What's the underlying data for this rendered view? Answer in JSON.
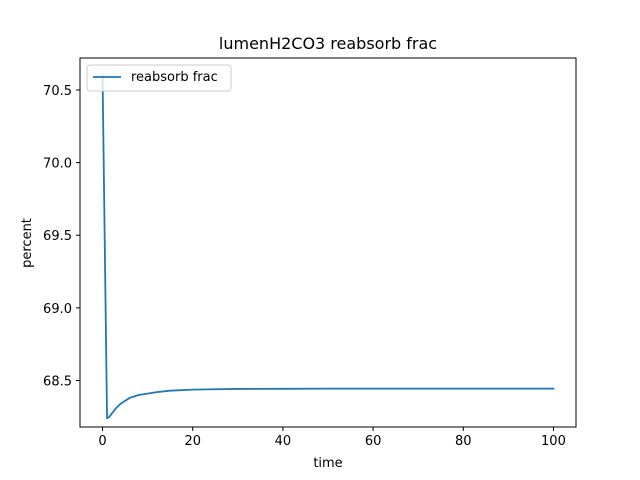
{
  "chart_data": {
    "type": "line",
    "title": "lumenH2CO3 reabsorb frac",
    "xlabel": "time",
    "ylabel": "percent",
    "xlim": [
      -5,
      105
    ],
    "ylim": [
      68.18,
      70.72
    ],
    "xticks": [
      0,
      20,
      40,
      60,
      80,
      100
    ],
    "yticks": [
      68.5,
      69.0,
      69.5,
      70.0,
      70.5
    ],
    "xtick_labels": [
      "0",
      "20",
      "40",
      "60",
      "80",
      "100"
    ],
    "ytick_labels": [
      "68.5",
      "69.0",
      "69.5",
      "70.0",
      "70.5"
    ],
    "grid": false,
    "legend_position": "upper left",
    "series": [
      {
        "name": "reabsorb frac",
        "color": "#1f77b4",
        "x": [
          0,
          1,
          1.5,
          2,
          3,
          4,
          5,
          6,
          8,
          10,
          12,
          15,
          20,
          25,
          30,
          40,
          50,
          60,
          70,
          80,
          90,
          100
        ],
        "y": [
          70.6,
          68.24,
          68.25,
          68.27,
          68.31,
          68.34,
          68.36,
          68.38,
          68.4,
          68.41,
          68.42,
          68.43,
          68.437,
          68.44,
          68.442,
          68.443,
          68.444,
          68.444,
          68.444,
          68.444,
          68.444,
          68.444
        ]
      }
    ]
  }
}
